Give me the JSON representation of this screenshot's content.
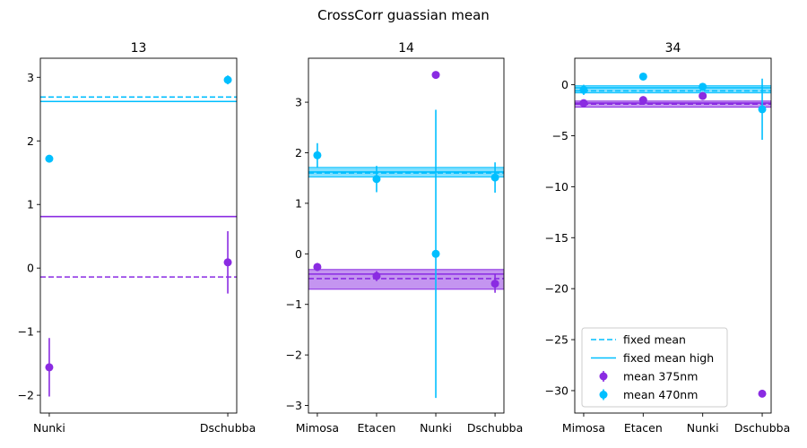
{
  "figure_title": "CrossCorr guassian mean",
  "colors": {
    "c375": "#8a2be2",
    "c470": "#00bfff"
  },
  "legend": {
    "position": "lower-left of third panel",
    "entries": [
      {
        "label": "fixed mean",
        "kind": "dashed-line"
      },
      {
        "label": "fixed mean high",
        "kind": "solid-line"
      },
      {
        "label": "mean 375nm",
        "kind": "errorbar",
        "color": "c375"
      },
      {
        "label": "mean 470nm",
        "kind": "errorbar",
        "color": "c470"
      }
    ]
  },
  "chart_data": [
    {
      "type": "scatter",
      "title": "13",
      "categories": [
        "Nunki",
        "Dschubba"
      ],
      "ylim": [
        -2.28,
        3.3
      ],
      "yticks": [
        -2,
        -1,
        0,
        1,
        2,
        3
      ],
      "ytick_labels": [
        "−2",
        "−1",
        "0",
        "1",
        "2",
        "3"
      ],
      "series": [
        {
          "name": "mean 375nm",
          "color": "c375",
          "values": [
            -1.56,
            0.09
          ],
          "err": [
            0.46,
            0.49
          ]
        },
        {
          "name": "mean 470nm",
          "color": "c470",
          "values": [
            1.72,
            2.96
          ],
          "err": [
            0.0,
            0.07
          ]
        }
      ],
      "fixed_lines": [
        {
          "color": "c375",
          "dashed": -0.14,
          "solid": 0.81
        },
        {
          "color": "c470",
          "dashed": 2.69,
          "solid": 2.62
        }
      ],
      "bands": []
    },
    {
      "type": "scatter",
      "title": "14",
      "categories": [
        "Mimosa",
        "Etacen",
        "Nunki",
        "Dschubba"
      ],
      "ylim": [
        -3.15,
        3.87
      ],
      "yticks": [
        -3,
        -2,
        -1,
        0,
        1,
        2,
        3
      ],
      "ytick_labels": [
        "−3",
        "−2",
        "−1",
        "0",
        "1",
        "2",
        "3"
      ],
      "series": [
        {
          "name": "mean 375nm",
          "color": "c375",
          "values": [
            -0.26,
            -0.44,
            3.54,
            -0.59
          ],
          "err": [
            0.08,
            0.1,
            0.0,
            0.18
          ]
        },
        {
          "name": "mean 470nm",
          "color": "c470",
          "values": [
            1.95,
            1.48,
            0.0,
            1.51
          ],
          "err": [
            0.24,
            0.26,
            2.85,
            0.3
          ]
        }
      ],
      "fixed_lines": [
        {
          "color": "c375",
          "dashed": -0.49,
          "solid": -0.4
        },
        {
          "color": "c470",
          "dashed": 1.6,
          "solid": 1.62
        }
      ],
      "bands": [
        {
          "color": "c375",
          "low": -0.7,
          "high": -0.31
        },
        {
          "color": "c470",
          "low": 1.52,
          "high": 1.71
        }
      ]
    },
    {
      "type": "scatter",
      "title": "34",
      "categories": [
        "Mimosa",
        "Etacen",
        "Nunki",
        "Dschubba"
      ],
      "ylim": [
        -32.2,
        2.6
      ],
      "yticks": [
        -30,
        -25,
        -20,
        -15,
        -10,
        -5,
        0
      ],
      "ytick_labels": [
        "−30",
        "−25",
        "−20",
        "−15",
        "−10",
        "−5",
        "0"
      ],
      "series": [
        {
          "name": "mean 375nm",
          "color": "c375",
          "values": [
            -1.8,
            -1.5,
            -1.1,
            -30.3
          ],
          "err": [
            0.0,
            0.0,
            0.0,
            0.0
          ]
        },
        {
          "name": "mean 470nm",
          "color": "c470",
          "values": [
            -0.5,
            0.8,
            -0.2,
            -2.4
          ],
          "err": [
            0.5,
            0.3,
            0.2,
            3.0
          ]
        }
      ],
      "fixed_lines": [
        {
          "color": "c375",
          "dashed": -1.9,
          "solid": -1.8
        },
        {
          "color": "c470",
          "dashed": -0.6,
          "solid": -0.3
        }
      ],
      "bands": [
        {
          "color": "c375",
          "low": -2.2,
          "high": -1.6
        },
        {
          "color": "c470",
          "low": -0.8,
          "high": -0.1
        }
      ]
    }
  ]
}
